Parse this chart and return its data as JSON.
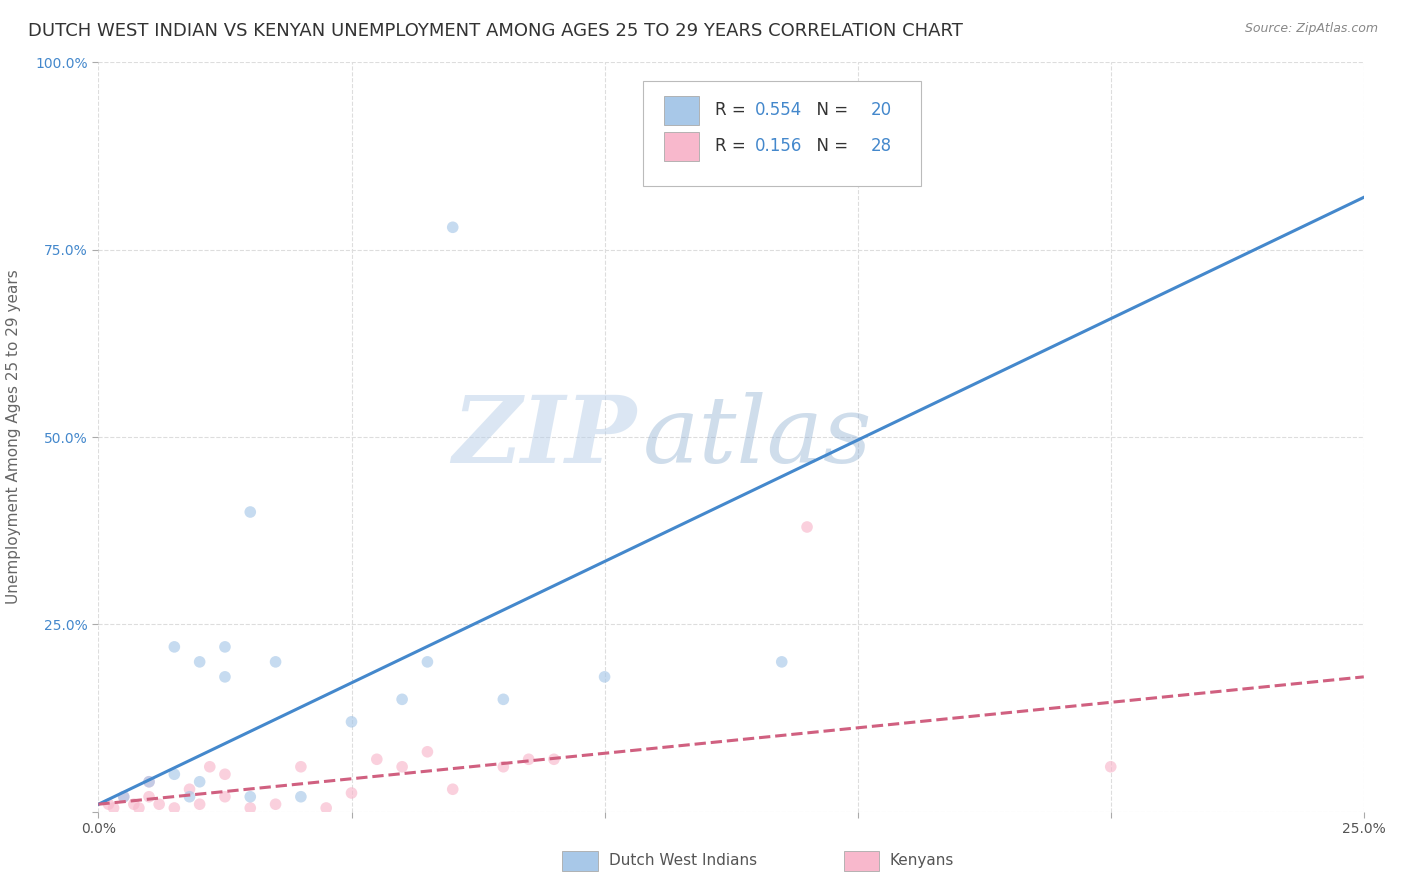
{
  "title": "DUTCH WEST INDIAN VS KENYAN UNEMPLOYMENT AMONG AGES 25 TO 29 YEARS CORRELATION CHART",
  "source": "Source: ZipAtlas.com",
  "ylabel": "Unemployment Among Ages 25 to 29 years",
  "xlim": [
    0.0,
    0.25
  ],
  "ylim": [
    0.0,
    1.0
  ],
  "xticks": [
    0.0,
    0.05,
    0.1,
    0.15,
    0.2,
    0.25
  ],
  "xticklabels": [
    "0.0%",
    "",
    "",
    "",
    "",
    "25.0%"
  ],
  "yticks": [
    0.0,
    0.25,
    0.5,
    0.75,
    1.0
  ],
  "yticklabels": [
    "",
    "25.0%",
    "50.0%",
    "75.0%",
    "100.0%"
  ],
  "blue_R": 0.554,
  "blue_N": 20,
  "pink_R": 0.156,
  "pink_N": 28,
  "blue_color": "#a8c8e8",
  "blue_line_color": "#4488cc",
  "pink_color": "#f8b8cc",
  "pink_line_color": "#d06080",
  "watermark_zip": "ZIP",
  "watermark_atlas": "atlas",
  "blue_scatter_x": [
    0.005,
    0.01,
    0.015,
    0.015,
    0.018,
    0.02,
    0.02,
    0.025,
    0.025,
    0.03,
    0.03,
    0.035,
    0.04,
    0.05,
    0.06,
    0.065,
    0.07,
    0.08,
    0.1,
    0.135
  ],
  "blue_scatter_y": [
    0.02,
    0.04,
    0.05,
    0.22,
    0.02,
    0.04,
    0.2,
    0.18,
    0.22,
    0.02,
    0.4,
    0.2,
    0.02,
    0.12,
    0.15,
    0.2,
    0.78,
    0.15,
    0.18,
    0.2
  ],
  "pink_scatter_x": [
    0.002,
    0.003,
    0.005,
    0.007,
    0.008,
    0.01,
    0.01,
    0.012,
    0.015,
    0.018,
    0.02,
    0.022,
    0.025,
    0.025,
    0.03,
    0.035,
    0.04,
    0.045,
    0.05,
    0.055,
    0.06,
    0.065,
    0.07,
    0.08,
    0.085,
    0.09,
    0.14,
    0.2
  ],
  "pink_scatter_y": [
    0.01,
    0.005,
    0.02,
    0.01,
    0.005,
    0.02,
    0.04,
    0.01,
    0.005,
    0.03,
    0.01,
    0.06,
    0.02,
    0.05,
    0.005,
    0.01,
    0.06,
    0.005,
    0.025,
    0.07,
    0.06,
    0.08,
    0.03,
    0.06,
    0.07,
    0.07,
    0.38,
    0.06
  ],
  "blue_line_x0": 0.0,
  "blue_line_x1": 0.25,
  "blue_line_y0": 0.01,
  "blue_line_y1": 0.82,
  "pink_line_x0": 0.0,
  "pink_line_x1": 0.25,
  "pink_line_y0": 0.01,
  "pink_line_y1": 0.18,
  "background_color": "#ffffff",
  "grid_color": "#dddddd",
  "title_fontsize": 13,
  "axis_label_fontsize": 11,
  "tick_fontsize": 10,
  "scatter_size": 70,
  "scatter_alpha": 0.65,
  "line_width": 2.2
}
